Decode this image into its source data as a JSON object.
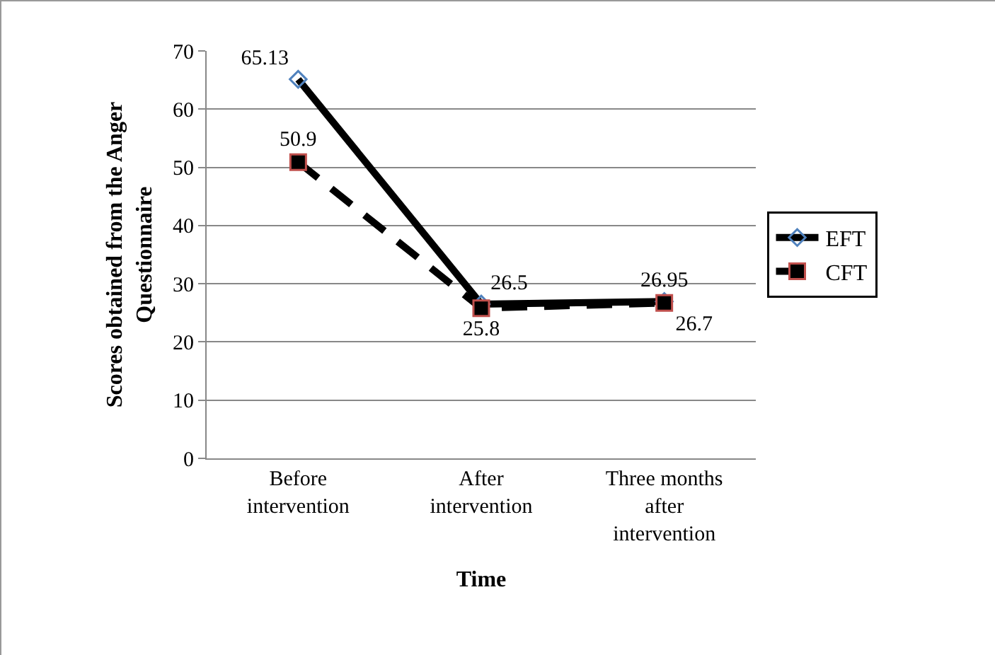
{
  "chart_data": {
    "type": "line",
    "xlabel": "Time",
    "ylabel": "Scores obtained from the Anger Questionnaire",
    "categories": [
      "Before intervention",
      "After intervention",
      "Three months after intervention"
    ],
    "series": [
      {
        "name": "EFT",
        "color": "#000000",
        "values": [
          65.13,
          26.5,
          26.95
        ],
        "marker": "diamond",
        "line_style": "solid"
      },
      {
        "name": "CFT",
        "color": "#000000",
        "values": [
          50.9,
          25.8,
          26.7
        ],
        "marker": "square",
        "line_style": "dashed"
      }
    ],
    "ylim": [
      0,
      70
    ],
    "yticks": [
      0,
      10,
      20,
      30,
      40,
      50,
      60,
      70
    ],
    "grid": "y",
    "legend": "right",
    "data_labels": true
  }
}
